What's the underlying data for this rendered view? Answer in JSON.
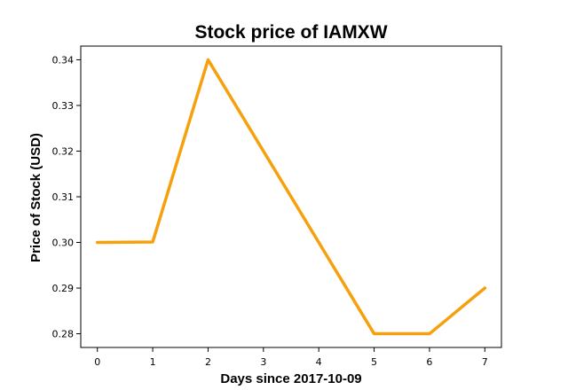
{
  "chart_data": {
    "type": "line",
    "title": "Stock price of IAMXW",
    "xlabel": "Days since 2017-10-09",
    "ylabel": "Price of Stock (USD)",
    "x": [
      0,
      1,
      2,
      3,
      4,
      5,
      6,
      7
    ],
    "series": [
      {
        "values": [
          0.3,
          0.3001,
          0.34,
          0.32,
          0.3,
          0.28,
          0.28,
          0.29
        ],
        "color": "#f5a00c"
      }
    ],
    "xlim": [
      -0.3,
      7.3
    ],
    "ylim": [
      0.277,
      0.343
    ],
    "xticks": [
      "0",
      "1",
      "2",
      "3",
      "4",
      "5",
      "6",
      "7"
    ],
    "yticks": [
      "0.28",
      "0.29",
      "0.30",
      "0.31",
      "0.32",
      "0.33",
      "0.34"
    ],
    "grid": false,
    "legend": "none"
  }
}
